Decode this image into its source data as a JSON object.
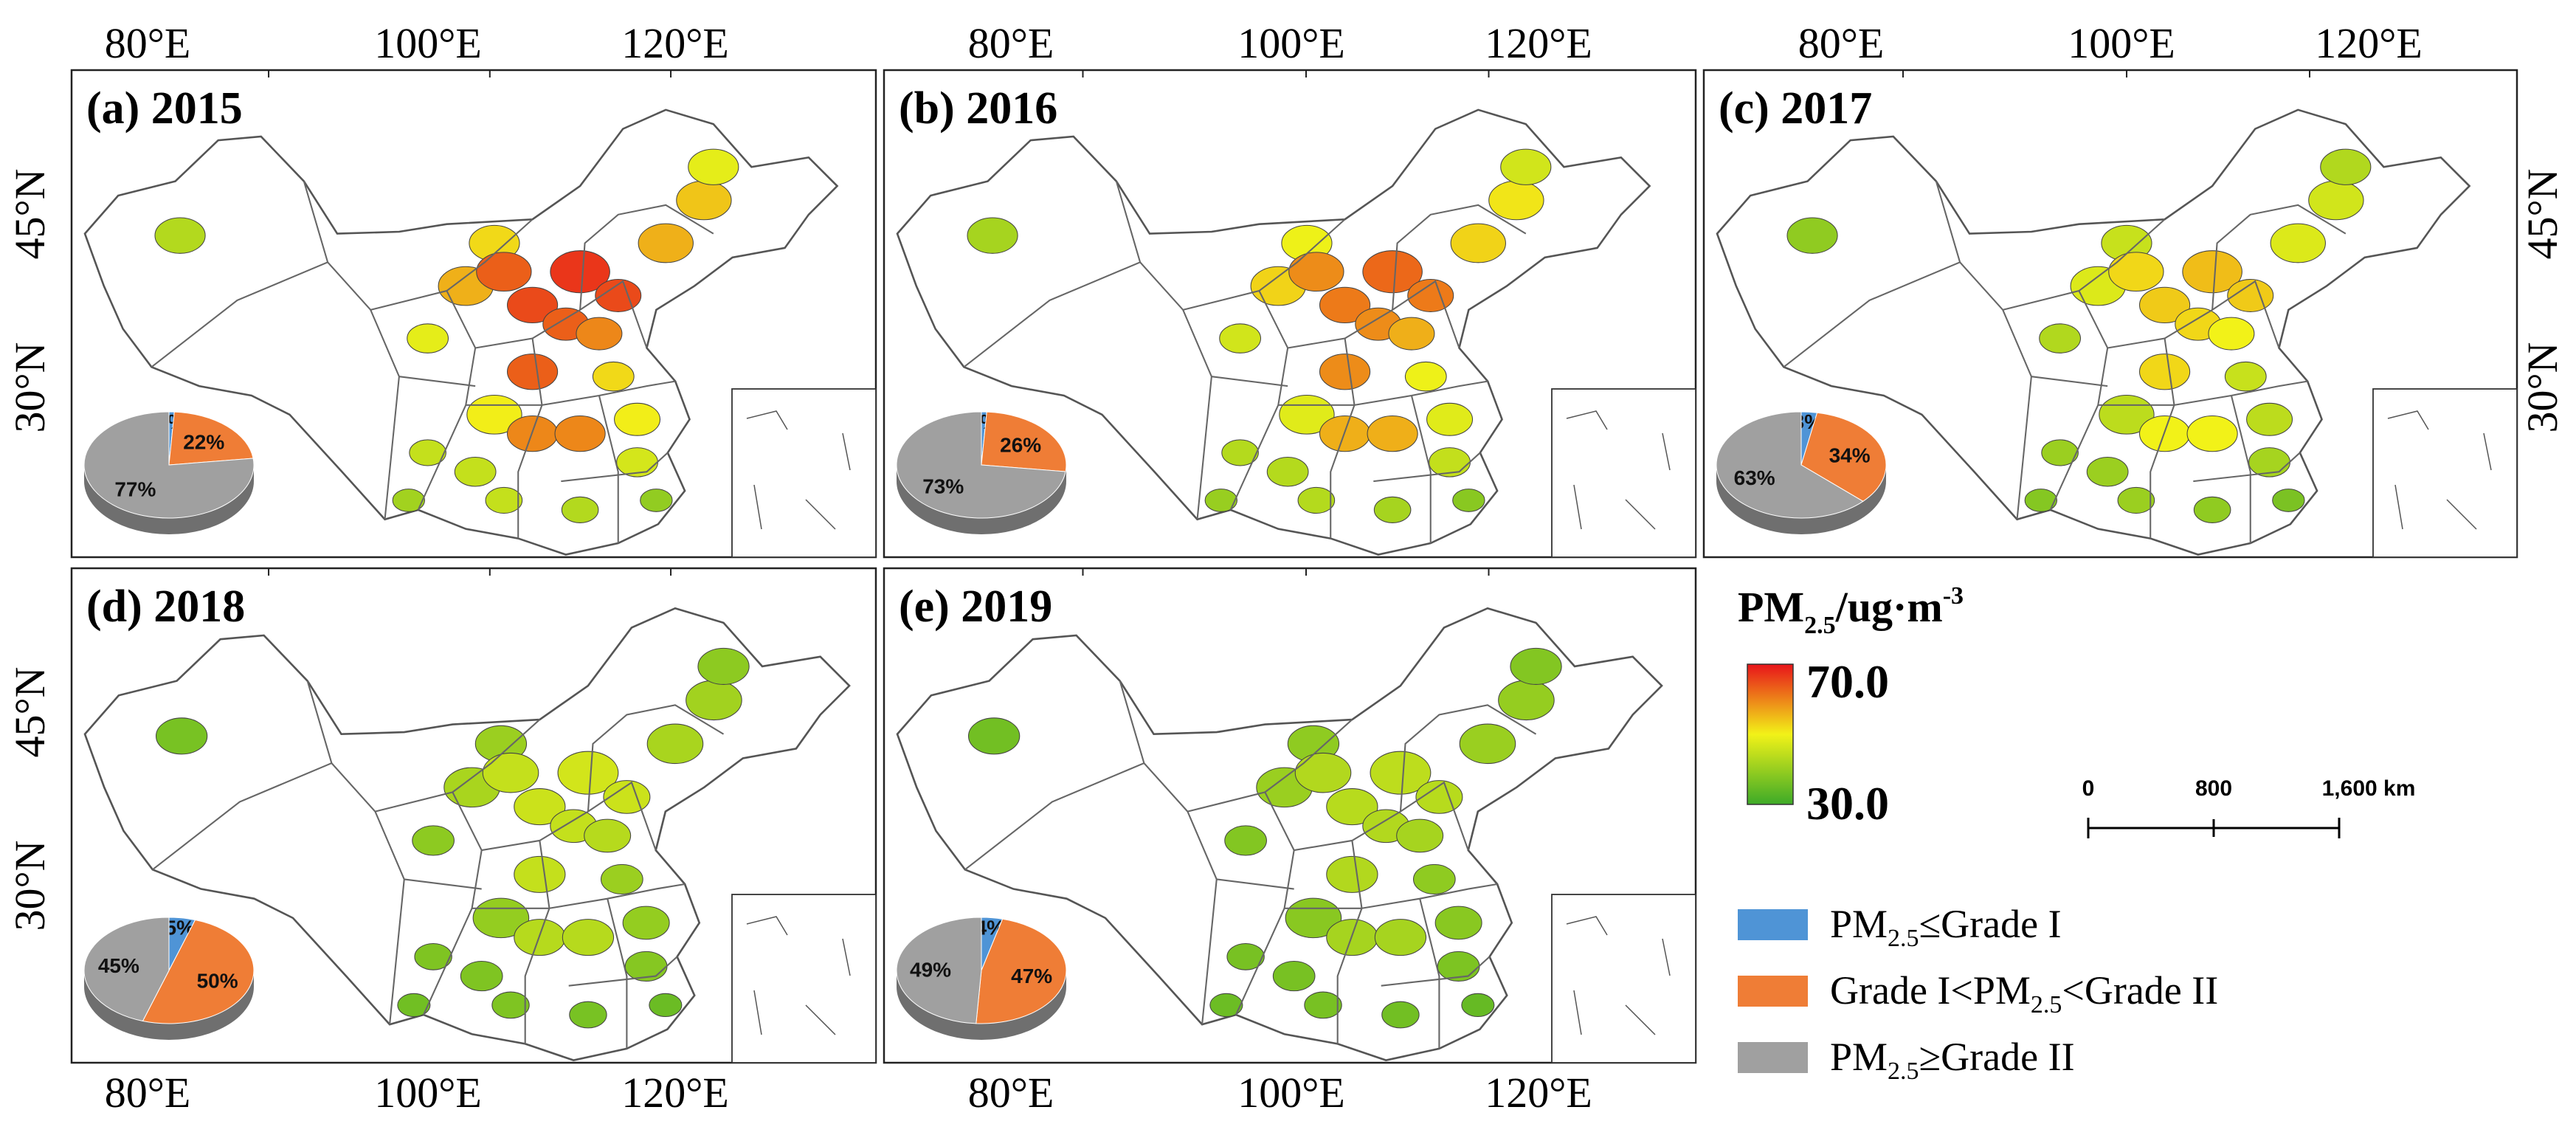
{
  "colors": {
    "grade1": "#4f94d6",
    "grade_mid": "#ef7d36",
    "grade2": "#a0a0a0",
    "ramp_high": "#e8141a",
    "ramp_mid": "#f2f218",
    "ramp_low": "#3daa28"
  },
  "axes": {
    "top_lon_labels": [
      "80°E",
      "100°E",
      "120°E"
    ],
    "bottom_lon_labels": [
      "80°E",
      "100°E",
      "120°E"
    ],
    "left_lat_labels": [
      "45°N",
      "30°N"
    ],
    "right_lat_labels": [
      "45°N",
      "30°N"
    ]
  },
  "panels": [
    {
      "label": "(a) 2015",
      "pie": [
        1,
        22,
        77
      ],
      "pie_labels": [
        "1%",
        "22%",
        "77%"
      ],
      "severity": 0.92
    },
    {
      "label": "(b) 2016",
      "pie": [
        1,
        26,
        73
      ],
      "pie_labels": [
        "1%",
        "26%",
        "73%"
      ],
      "severity": 0.8
    },
    {
      "label": "(c) 2017",
      "pie": [
        3,
        34,
        63
      ],
      "pie_labels": [
        "3%",
        "34%",
        "63%"
      ],
      "severity": 0.6
    },
    {
      "label": "(d) 2018",
      "pie": [
        5,
        50,
        45
      ],
      "pie_labels": [
        "5%",
        "50%",
        "45%"
      ],
      "severity": 0.38
    },
    {
      "label": "(e) 2019",
      "pie": [
        4,
        47,
        49
      ],
      "pie_labels": [
        "4%",
        "47%",
        "49%"
      ],
      "severity": 0.32
    }
  ],
  "colorbar": {
    "title_main": "PM",
    "title_sub": "2.5",
    "title_unit": "/ug·m",
    "title_sup": "-3",
    "max": "70.0",
    "min": "30.0"
  },
  "scalebar": {
    "ticks": [
      "0",
      "800",
      "1,600 km"
    ]
  },
  "legend": [
    {
      "color_key": "grade1",
      "pre": "PM",
      "sub": "2.5",
      "post": "≤Grade I"
    },
    {
      "color_key": "grade_mid",
      "pre": "Grade I<PM",
      "sub": "2.5",
      "post": "<Grade II"
    },
    {
      "color_key": "grade2",
      "pre": "PM",
      "sub": "2.5",
      "post": "≥Grade II"
    }
  ]
}
